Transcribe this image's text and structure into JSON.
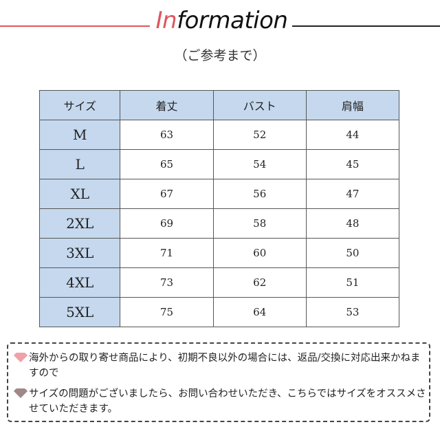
{
  "header": {
    "title_accent": "In",
    "title_rest": "formation",
    "subtitle": "（ご参考まで）",
    "accent_color": "#e0555d"
  },
  "table": {
    "columns": [
      "サイズ",
      "着丈",
      "バスト",
      "肩幅"
    ],
    "rows": [
      [
        "M",
        "63",
        "52",
        "44"
      ],
      [
        "L",
        "65",
        "54",
        "45"
      ],
      [
        "XL",
        "67",
        "56",
        "47"
      ],
      [
        "2XL",
        "69",
        "58",
        "48"
      ],
      [
        "3XL",
        "71",
        "60",
        "50"
      ],
      [
        "4XL",
        "73",
        "62",
        "51"
      ],
      [
        "5XL",
        "75",
        "64",
        "53"
      ]
    ],
    "header_color": "#c5d8ee"
  },
  "notes": [
    {
      "icon": "fan-icon",
      "color": "#f0a0a8",
      "text": "海外からの取り寄せ商品により、初期不良以外の場合には、返品/交換に対応出来かねますので"
    },
    {
      "icon": "fan-icon",
      "color": "#a08888",
      "text": "サイズの問題がございましたら、お問い合わせいただき、こちらではサイズをオススメさせていただきます。"
    }
  ]
}
